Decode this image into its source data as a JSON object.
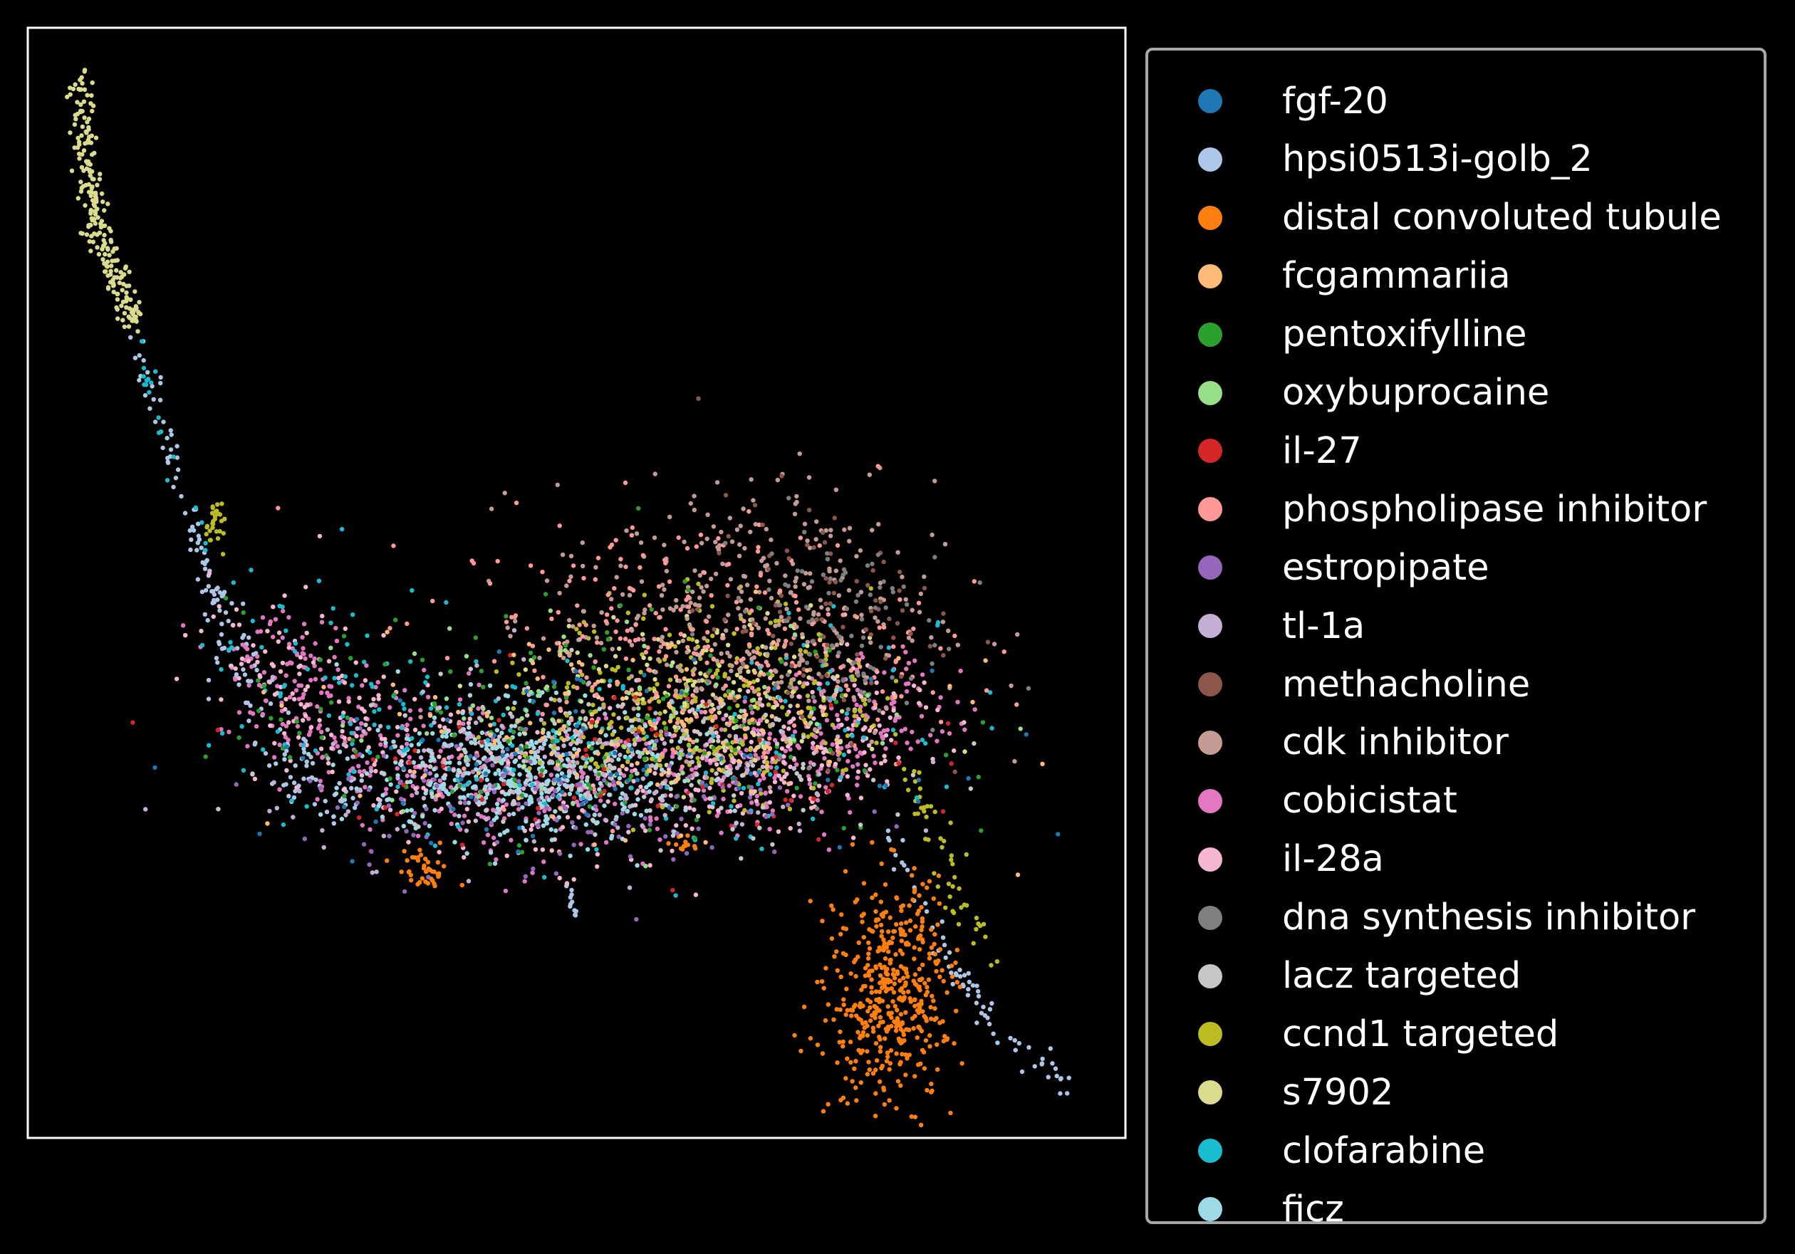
{
  "chart_data": {
    "type": "scatter",
    "title": "",
    "xlabel": "",
    "ylabel": "",
    "xlim": [
      0,
      1
    ],
    "ylim": [
      0,
      1
    ],
    "grid": false,
    "axis_ticks": false,
    "legend_placement": "outside-right",
    "background": "#000000",
    "axes_color": "#ffffff",
    "legend_border_color": "#a8a8a8",
    "series": [
      {
        "name": "fgf-20",
        "color": "#1f77b4"
      },
      {
        "name": "hpsi0513i-golb_2",
        "color": "#aec7e8"
      },
      {
        "name": "distal convoluted tubule",
        "color": "#ff7f0e"
      },
      {
        "name": "fcgammariia",
        "color": "#ffbb78"
      },
      {
        "name": "pentoxifylline",
        "color": "#2ca02c"
      },
      {
        "name": "oxybuprocaine",
        "color": "#98df8a"
      },
      {
        "name": "il-27",
        "color": "#d62728"
      },
      {
        "name": "phospholipase inhibitor",
        "color": "#ff9896"
      },
      {
        "name": "estropipate",
        "color": "#9467bd"
      },
      {
        "name": "tl-1a",
        "color": "#c5b0d5"
      },
      {
        "name": "methacholine",
        "color": "#8c564b"
      },
      {
        "name": "cdk inhibitor",
        "color": "#c49c94"
      },
      {
        "name": "cobicistat",
        "color": "#e377c2"
      },
      {
        "name": "il-28a",
        "color": "#f7b6d2"
      },
      {
        "name": "dna synthesis inhibitor",
        "color": "#7f7f7f"
      },
      {
        "name": "lacz targeted",
        "color": "#c7c7c7"
      },
      {
        "name": "ccnd1 targeted",
        "color": "#bcbd22"
      },
      {
        "name": "s7902",
        "color": "#dbdb8d"
      },
      {
        "name": "clofarabine",
        "color": "#17becf"
      },
      {
        "name": "ficz",
        "color": "#9edae5"
      }
    ],
    "clusters": [
      {
        "series": "s7902",
        "shape": "curve",
        "path": [
          [
            0.046,
            0.955
          ],
          [
            0.055,
            0.87
          ],
          [
            0.07,
            0.8
          ],
          [
            0.1,
            0.73
          ]
        ],
        "spread": 0.006,
        "n": 240
      },
      {
        "series": "hpsi0513i-golb_2",
        "shape": "curve",
        "path": [
          [
            0.1,
            0.72
          ],
          [
            0.12,
            0.65
          ],
          [
            0.15,
            0.55
          ],
          [
            0.17,
            0.49
          ]
        ],
        "spread": 0.004,
        "n": 60
      },
      {
        "series": "clofarabine",
        "shape": "curve",
        "path": [
          [
            0.1,
            0.72
          ],
          [
            0.13,
            0.6
          ],
          [
            0.16,
            0.52
          ]
        ],
        "spread": 0.005,
        "n": 18
      },
      {
        "series": "ccnd1 targeted",
        "shape": "blob",
        "center": [
          0.17,
          0.555
        ],
        "radius": [
          0.008,
          0.02
        ],
        "n": 30
      },
      {
        "series": "hpsi0513i-golb_2",
        "shape": "curve",
        "path": [
          [
            0.175,
            0.49
          ],
          [
            0.19,
            0.43
          ],
          [
            0.24,
            0.33
          ],
          [
            0.3,
            0.3
          ]
        ],
        "spread": 0.012,
        "n": 120
      },
      {
        "series": "hpsi0513i-golb_2",
        "shape": "curve",
        "path": [
          [
            0.78,
            0.28
          ],
          [
            0.83,
            0.18
          ],
          [
            0.87,
            0.11
          ],
          [
            0.95,
            0.045
          ]
        ],
        "spread": 0.006,
        "n": 70
      },
      {
        "series": "ccnd1 targeted",
        "shape": "curve",
        "path": [
          [
            0.8,
            0.33
          ],
          [
            0.84,
            0.25
          ],
          [
            0.87,
            0.17
          ]
        ],
        "spread": 0.008,
        "n": 50
      },
      {
        "series": "distal convoluted tubule",
        "shape": "blob",
        "center": [
          0.785,
          0.13
        ],
        "radius": [
          0.05,
          0.09
        ],
        "n": 480
      },
      {
        "series": "distal convoluted tubule",
        "shape": "blob",
        "center": [
          0.36,
          0.24
        ],
        "radius": [
          0.025,
          0.02
        ],
        "n": 40
      },
      {
        "series": "distal convoluted tubule",
        "shape": "blob",
        "center": [
          0.6,
          0.265
        ],
        "radius": [
          0.012,
          0.008
        ],
        "n": 12
      },
      {
        "series": "hpsi0513i-golb_2",
        "shape": "curve",
        "path": [
          [
            0.49,
            0.225
          ],
          [
            0.5,
            0.2
          ]
        ],
        "spread": 0.003,
        "n": 12
      },
      {
        "series": "cobicistat",
        "shape": "curve",
        "path": [
          [
            0.2,
            0.44
          ],
          [
            0.3,
            0.36
          ],
          [
            0.45,
            0.31
          ],
          [
            0.6,
            0.33
          ],
          [
            0.7,
            0.35
          ],
          [
            0.8,
            0.39
          ]
        ],
        "spread": 0.03,
        "n": 700
      },
      {
        "series": "il-28a",
        "shape": "curve",
        "path": [
          [
            0.2,
            0.44
          ],
          [
            0.3,
            0.36
          ],
          [
            0.45,
            0.31
          ],
          [
            0.6,
            0.33
          ],
          [
            0.7,
            0.35
          ],
          [
            0.8,
            0.39
          ]
        ],
        "spread": 0.035,
        "n": 500
      },
      {
        "series": "ficz",
        "shape": "blob",
        "center": [
          0.45,
          0.33
        ],
        "radius": [
          0.13,
          0.055
        ],
        "n": 500
      },
      {
        "series": "clofarabine",
        "shape": "curve",
        "path": [
          [
            0.2,
            0.44
          ],
          [
            0.35,
            0.36
          ],
          [
            0.5,
            0.34
          ],
          [
            0.65,
            0.36
          ],
          [
            0.8,
            0.4
          ]
        ],
        "spread": 0.05,
        "n": 220
      },
      {
        "series": "ccnd1 targeted",
        "shape": "blob",
        "center": [
          0.62,
          0.39
        ],
        "radius": [
          0.14,
          0.08
        ],
        "n": 320
      },
      {
        "series": "dbdb8d-mix",
        "shape": "none"
      },
      {
        "series": "s7902",
        "shape": "blob",
        "center": [
          0.62,
          0.4
        ],
        "radius": [
          0.14,
          0.07
        ],
        "n": 160
      },
      {
        "series": "cdk inhibitor",
        "shape": "blob",
        "center": [
          0.65,
          0.47
        ],
        "radius": [
          0.16,
          0.11
        ],
        "n": 380
      },
      {
        "series": "phospholipase inhibitor",
        "shape": "blob",
        "center": [
          0.6,
          0.44
        ],
        "radius": [
          0.2,
          0.11
        ],
        "n": 300
      },
      {
        "series": "methacholine",
        "shape": "blob",
        "center": [
          0.72,
          0.47
        ],
        "radius": [
          0.1,
          0.1
        ],
        "n": 90
      },
      {
        "series": "dna synthesis inhibitor",
        "shape": "blob",
        "center": [
          0.73,
          0.46
        ],
        "radius": [
          0.1,
          0.1
        ],
        "n": 90
      },
      {
        "series": "pentoxifylline",
        "shape": "blob",
        "center": [
          0.5,
          0.37
        ],
        "radius": [
          0.28,
          0.1
        ],
        "n": 160
      },
      {
        "series": "oxybuprocaine",
        "shape": "blob",
        "center": [
          0.55,
          0.38
        ],
        "radius": [
          0.25,
          0.08
        ],
        "n": 90
      },
      {
        "series": "il-27",
        "shape": "blob",
        "center": [
          0.5,
          0.34
        ],
        "radius": [
          0.25,
          0.07
        ],
        "n": 70
      },
      {
        "series": "estropipate",
        "shape": "blob",
        "center": [
          0.48,
          0.3
        ],
        "radius": [
          0.22,
          0.06
        ],
        "n": 120
      },
      {
        "series": "tl-1a",
        "shape": "blob",
        "center": [
          0.5,
          0.33
        ],
        "radius": [
          0.25,
          0.07
        ],
        "n": 160
      },
      {
        "series": "lacz targeted",
        "shape": "blob",
        "center": [
          0.55,
          0.34
        ],
        "radius": [
          0.25,
          0.07
        ],
        "n": 140
      },
      {
        "series": "fgf-20",
        "shape": "blob",
        "center": [
          0.5,
          0.34
        ],
        "radius": [
          0.25,
          0.07
        ],
        "n": 90
      },
      {
        "series": "fcgammariia",
        "shape": "blob",
        "center": [
          0.55,
          0.37
        ],
        "radius": [
          0.25,
          0.08
        ],
        "n": 140
      }
    ]
  }
}
